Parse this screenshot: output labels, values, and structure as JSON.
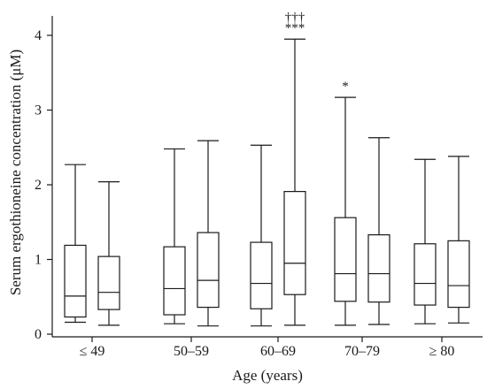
{
  "chart_data": {
    "type": "box",
    "xlabel": "Age (years)",
    "ylabel": "Serum ergothioneine concentration (μM)",
    "ylim": [
      0,
      4.2
    ],
    "y_ticks": [
      0,
      1,
      2,
      3,
      4
    ],
    "grid": false,
    "categories": [
      "≤ 49",
      "50–59",
      "60–69",
      "70–79",
      "≥ 80"
    ],
    "boxes": [
      {
        "category": "≤ 49",
        "pos": 1,
        "min": 0.16,
        "q1": 0.23,
        "median": 0.51,
        "q3": 1.19,
        "max": 2.27
      },
      {
        "category": "≤ 49",
        "pos": 2,
        "min": 0.12,
        "q1": 0.33,
        "median": 0.56,
        "q3": 1.04,
        "max": 2.04
      },
      {
        "category": "50–59",
        "pos": 1,
        "min": 0.14,
        "q1": 0.26,
        "median": 0.61,
        "q3": 1.17,
        "max": 2.48
      },
      {
        "category": "50–59",
        "pos": 2,
        "min": 0.11,
        "q1": 0.36,
        "median": 0.72,
        "q3": 1.36,
        "max": 2.59
      },
      {
        "category": "60–69",
        "pos": 1,
        "min": 0.11,
        "q1": 0.34,
        "median": 0.68,
        "q3": 1.23,
        "max": 2.53
      },
      {
        "category": "60–69",
        "pos": 2,
        "min": 0.12,
        "q1": 0.53,
        "median": 0.95,
        "q3": 1.91,
        "max": 3.95,
        "annotations": [
          "†††",
          "***"
        ]
      },
      {
        "category": "70–79",
        "pos": 1,
        "min": 0.12,
        "q1": 0.44,
        "median": 0.81,
        "q3": 1.56,
        "max": 3.17,
        "annotations": [
          "*"
        ]
      },
      {
        "category": "70–79",
        "pos": 2,
        "min": 0.13,
        "q1": 0.43,
        "median": 0.81,
        "q3": 1.33,
        "max": 2.63
      },
      {
        "category": "≥ 80",
        "pos": 1,
        "min": 0.14,
        "q1": 0.39,
        "median": 0.68,
        "q3": 1.21,
        "max": 2.34
      },
      {
        "category": "≥ 80",
        "pos": 2,
        "min": 0.15,
        "q1": 0.36,
        "median": 0.65,
        "q3": 1.25,
        "max": 2.38
      }
    ]
  }
}
